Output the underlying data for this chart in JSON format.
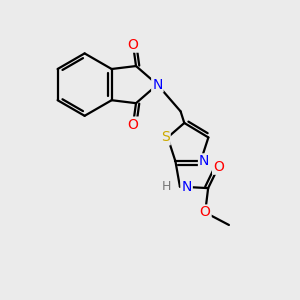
{
  "background_color": "#ebebeb",
  "atom_colors": {
    "C": "#000000",
    "N": "#0000ff",
    "O": "#ff0000",
    "S": "#ccaa00",
    "H": "#777777"
  },
  "bond_color": "#000000",
  "bond_width": 1.6,
  "figsize": [
    3.0,
    3.0
  ],
  "dpi": 100,
  "xlim": [
    0,
    10
  ],
  "ylim": [
    0,
    10
  ]
}
